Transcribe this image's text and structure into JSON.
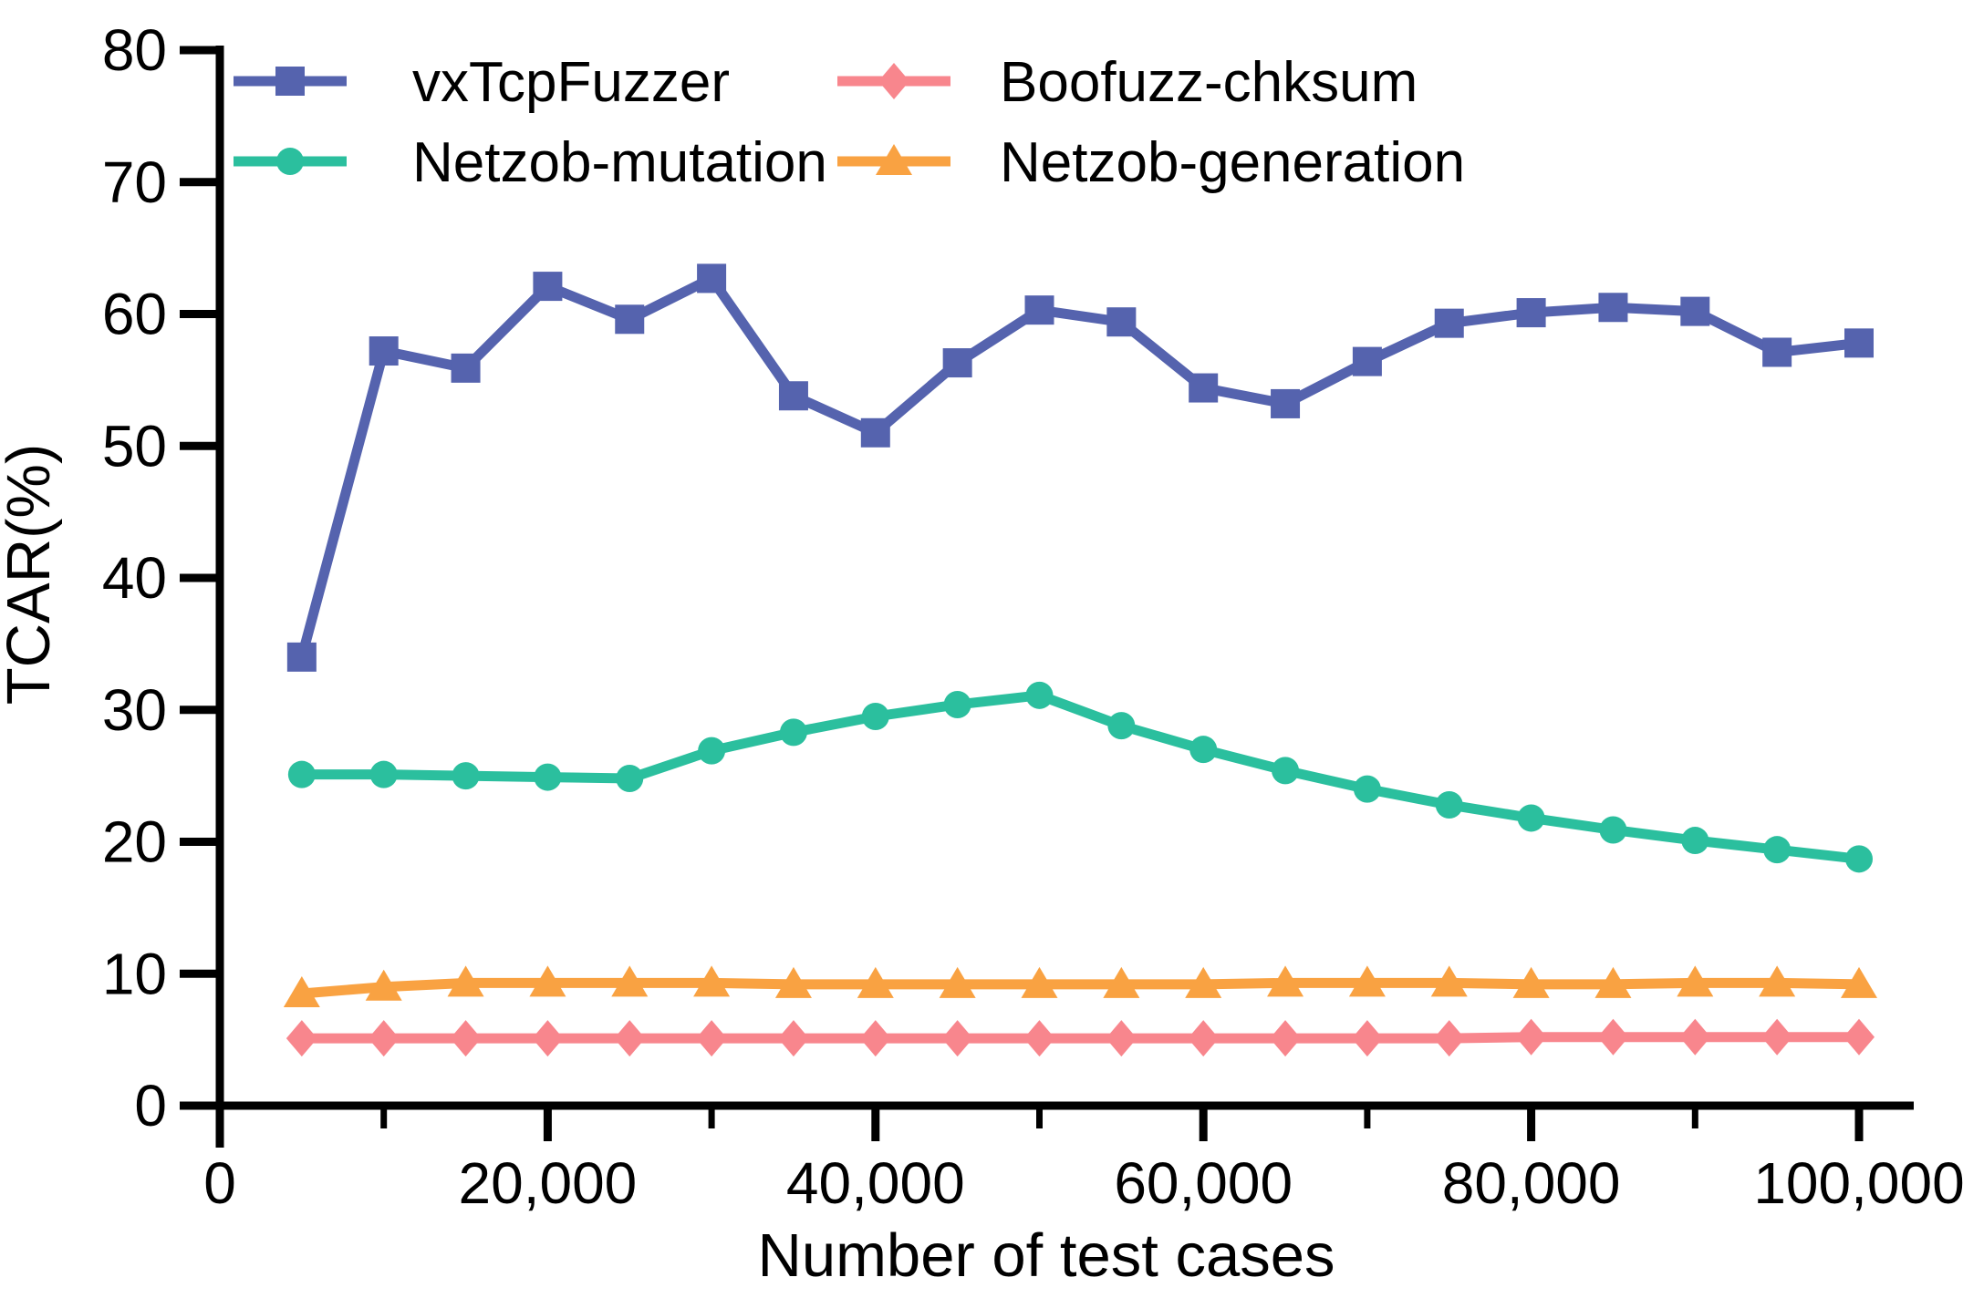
{
  "figure": {
    "background": "#ffffff",
    "text_color": "#000000",
    "axis_color": "#000000"
  },
  "chart_data": {
    "type": "line",
    "title": "",
    "xlabel": "Number of test cases",
    "ylabel": "TCAR(%)",
    "xlim": [
      0,
      100000
    ],
    "ylim": [
      0,
      80
    ],
    "grid": false,
    "legend_position": "top-left inside plot, two columns",
    "x": [
      5000,
      10000,
      15000,
      20000,
      25000,
      30000,
      35000,
      40000,
      45000,
      50000,
      55000,
      60000,
      65000,
      70000,
      75000,
      80000,
      85000,
      90000,
      95000,
      100000
    ],
    "series": [
      {
        "name": "vxTcpFuzzer",
        "color": "#5563AE",
        "marker": "square",
        "values": [
          34.0,
          57.2,
          55.9,
          62.1,
          59.6,
          62.7,
          53.8,
          51.0,
          56.3,
          60.3,
          59.4,
          54.4,
          53.2,
          56.4,
          59.3,
          60.1,
          60.5,
          60.2,
          57.1,
          57.8
        ]
      },
      {
        "name": "Netzob-mutation",
        "color": "#2BBF9E",
        "marker": "circle",
        "values": [
          25.1,
          25.1,
          25.0,
          24.9,
          24.8,
          26.9,
          28.3,
          29.5,
          30.4,
          31.1,
          28.8,
          27.0,
          25.4,
          24.0,
          22.8,
          21.8,
          20.9,
          20.1,
          19.4,
          18.7
        ]
      },
      {
        "name": "Boofuzz-chksum",
        "color": "#F8868D",
        "marker": "diamond",
        "values": [
          5.1,
          5.1,
          5.1,
          5.1,
          5.1,
          5.1,
          5.1,
          5.1,
          5.1,
          5.1,
          5.1,
          5.1,
          5.1,
          5.1,
          5.1,
          5.2,
          5.2,
          5.2,
          5.2,
          5.2
        ]
      },
      {
        "name": "Netzob-generation",
        "color": "#F9A242",
        "marker": "triangle",
        "values": [
          8.5,
          9.0,
          9.3,
          9.3,
          9.3,
          9.3,
          9.2,
          9.2,
          9.2,
          9.2,
          9.2,
          9.2,
          9.3,
          9.3,
          9.3,
          9.2,
          9.2,
          9.3,
          9.3,
          9.2
        ]
      }
    ],
    "y_axis": {
      "ticks": [
        0,
        10,
        20,
        30,
        40,
        50,
        60,
        70,
        80
      ],
      "tick_labels": [
        "0",
        "10",
        "20",
        "30",
        "40",
        "50",
        "60",
        "70",
        "80"
      ]
    },
    "x_axis": {
      "major_ticks": [
        0,
        20000,
        40000,
        60000,
        80000,
        100000
      ],
      "major_tick_labels": [
        "0",
        "20,000",
        "40,000",
        "60,000",
        "80,000",
        "100,000"
      ],
      "minor_ticks": [
        10000,
        30000,
        50000,
        70000,
        90000
      ]
    },
    "legend": {
      "columns": [
        [
          "vxTcpFuzzer",
          "Netzob-mutation"
        ],
        [
          "Boofuzz-chksum",
          "Netzob-generation"
        ]
      ]
    }
  }
}
